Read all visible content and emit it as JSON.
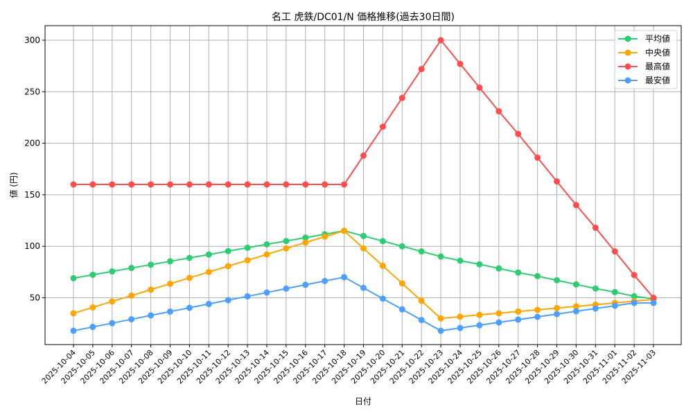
{
  "chart_data": {
    "type": "line",
    "title": "名工 虎鉄/DC01/N 価格推移(過去30日間)",
    "xlabel": "日付",
    "ylabel": "値 (円)",
    "ylim": [
      7,
      315
    ],
    "yticks": [
      50,
      100,
      150,
      200,
      250,
      300
    ],
    "grid": true,
    "legend_position": "upper right",
    "categories": [
      "2025-10-04",
      "2025-10-05",
      "2025-10-06",
      "2025-10-07",
      "2025-10-08",
      "2025-10-09",
      "2025-10-10",
      "2025-10-11",
      "2025-10-12",
      "2025-10-13",
      "2025-10-14",
      "2025-10-15",
      "2025-10-16",
      "2025-10-17",
      "2025-10-18",
      "2025-10-19",
      "2025-10-20",
      "2025-10-21",
      "2025-10-22",
      "2025-10-23",
      "2025-10-24",
      "2025-10-25",
      "2025-10-26",
      "2025-10-27",
      "2025-10-28",
      "2025-10-29",
      "2025-10-30",
      "2025-10-31",
      "2025-11-01",
      "2025-11-02",
      "2025-11-03"
    ],
    "series": [
      {
        "name": "平均値",
        "color": "#2ecc71",
        "values": [
          69,
          72.3,
          75.6,
          78.9,
          82.1,
          85.4,
          88.7,
          92,
          95.3,
          98.6,
          101.9,
          105.1,
          108.4,
          111.7,
          115,
          110,
          105,
          100,
          95,
          90,
          86,
          82.5,
          78.5,
          74.5,
          71,
          67,
          63,
          59,
          55.5,
          51.5,
          49
        ]
      },
      {
        "name": "中央値",
        "color": "#ffa500",
        "values": [
          35,
          40.7,
          46.4,
          52.1,
          57.9,
          63.6,
          69.3,
          75,
          80.7,
          86.4,
          92.1,
          97.9,
          103.6,
          109.3,
          115,
          98,
          81,
          64,
          47,
          30,
          31.7,
          33.4,
          35,
          36.7,
          38.3,
          40,
          41.7,
          43.3,
          45,
          46.7,
          48.5
        ]
      },
      {
        "name": "最高値",
        "color": "#ff4d4d",
        "values": [
          160,
          160,
          160,
          160,
          160,
          160,
          160,
          160,
          160,
          160,
          160,
          160,
          160,
          160,
          160,
          188,
          216,
          244,
          272,
          300,
          277,
          254,
          231,
          209,
          186,
          163,
          140,
          118,
          95,
          72,
          50
        ]
      },
      {
        "name": "最安値",
        "color": "#4d9fff",
        "values": [
          18,
          21.7,
          25.4,
          29.1,
          32.9,
          36.6,
          40.3,
          44,
          47.7,
          51.4,
          55.1,
          58.9,
          62.6,
          66.3,
          70,
          59.6,
          49.2,
          38.8,
          28.4,
          18,
          20.7,
          23.4,
          26.1,
          28.8,
          31.5,
          34.2,
          36.9,
          39.6,
          42.3,
          45,
          45
        ]
      }
    ]
  },
  "labels": {
    "title": "名工 虎鉄/DC01/N 価格推移(過去30日間)",
    "xlabel": "日付",
    "ylabel": "値 (円)"
  }
}
